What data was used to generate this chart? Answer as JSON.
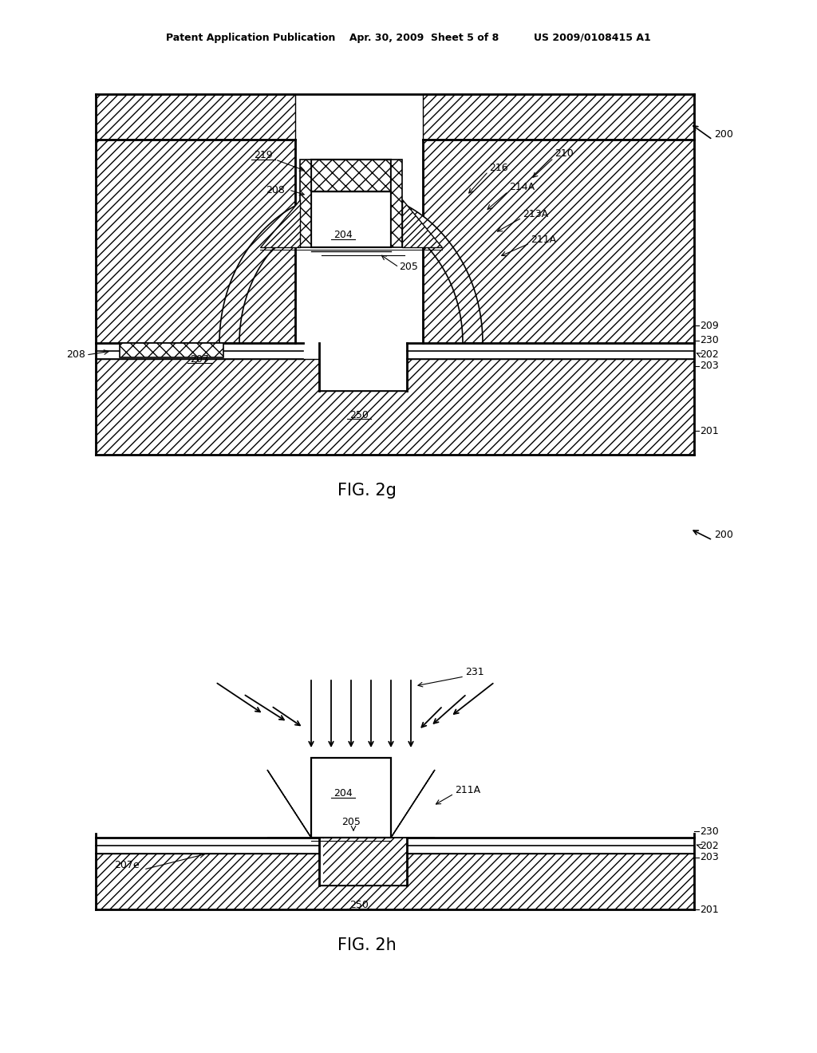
{
  "bg_color": "#ffffff",
  "line_color": "#000000",
  "header_text": "Patent Application Publication    Apr. 30, 2009  Sheet 5 of 8          US 2009/0108415 A1",
  "fig2g_label": "FIG. 2g",
  "fig2h_label": "FIG. 2h"
}
